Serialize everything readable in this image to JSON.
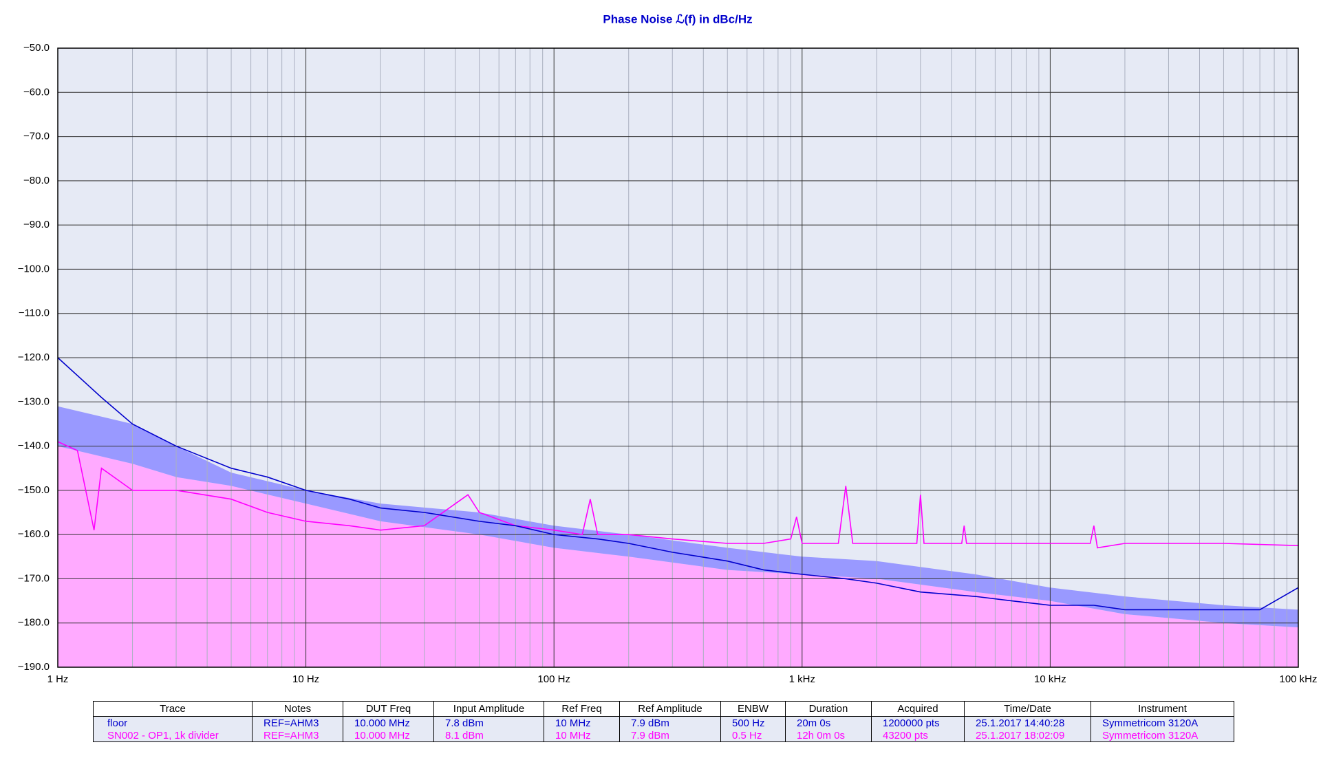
{
  "chart_data": {
    "type": "line",
    "title": "Phase Noise ℒ(f) in dBc/Hz",
    "title_color": "#0000cc",
    "xscale": "log",
    "grid": true,
    "xlim": [
      1,
      100000
    ],
    "ylim": [
      -190,
      -50
    ],
    "xticks": [
      {
        "value": 1,
        "label": "1 Hz"
      },
      {
        "value": 10,
        "label": "10 Hz"
      },
      {
        "value": 100,
        "label": "100 Hz"
      },
      {
        "value": 1000,
        "label": "1 kHz"
      },
      {
        "value": 10000,
        "label": "10 kHz"
      },
      {
        "value": 100000,
        "label": "100 kHz"
      }
    ],
    "xminorticks": [
      2,
      3,
      4,
      5,
      6,
      7,
      8,
      9,
      20,
      30,
      40,
      50,
      60,
      70,
      80,
      90,
      200,
      300,
      400,
      500,
      600,
      700,
      800,
      900,
      2000,
      3000,
      4000,
      5000,
      6000,
      7000,
      8000,
      9000,
      20000,
      30000,
      40000,
      50000,
      60000,
      70000,
      80000,
      90000
    ],
    "yticks": [
      {
        "value": -50,
        "label": "−50.0"
      },
      {
        "value": -60,
        "label": "−60.0"
      },
      {
        "value": -70,
        "label": "−70.0"
      },
      {
        "value": -80,
        "label": "−80.0"
      },
      {
        "value": -90,
        "label": "−90.0"
      },
      {
        "value": -100,
        "label": "−100.0"
      },
      {
        "value": -110,
        "label": "−110.0"
      },
      {
        "value": -120,
        "label": "−120.0"
      },
      {
        "value": -130,
        "label": "−130.0"
      },
      {
        "value": -140,
        "label": "−140.0"
      },
      {
        "value": -150,
        "label": "−150.0"
      },
      {
        "value": -160,
        "label": "−160.0"
      },
      {
        "value": -170,
        "label": "−170.0"
      },
      {
        "value": -180,
        "label": "−180.0"
      },
      {
        "value": -190,
        "label": "−190.0"
      }
    ],
    "bands": [
      {
        "color": "#ffaaff",
        "x": [
          1,
          2,
          3,
          5,
          10,
          20,
          50,
          100,
          200,
          500,
          1000,
          2000,
          5000,
          10000,
          20000,
          50000,
          100000
        ],
        "upper": [
          -140,
          -144,
          -147,
          -149,
          -153,
          -157,
          -160,
          -163,
          -165,
          -168,
          -169,
          -170,
          -173,
          -175,
          -178,
          -180,
          -181
        ]
      },
      {
        "color": "#9999ff",
        "x": [
          1,
          2,
          3,
          5,
          10,
          20,
          50,
          100,
          200,
          500,
          1000,
          2000,
          5000,
          10000,
          20000,
          50000,
          100000
        ],
        "upper": [
          -131,
          -135,
          -140,
          -146,
          -150,
          -153,
          -155,
          -158,
          -160,
          -163,
          -165,
          -166,
          -169,
          -172,
          -174,
          -176,
          -177
        ],
        "lower": [
          -140,
          -144,
          -147,
          -149,
          -153,
          -157,
          -160,
          -163,
          -165,
          -168,
          -169,
          -170,
          -173,
          -175,
          -178,
          -180,
          -181
        ]
      }
    ],
    "series": [
      {
        "name": "SN002 - OP1, 1k divider",
        "color": "#ff00ff",
        "x": [
          1,
          1.2,
          1.4,
          1.5,
          2,
          3,
          5,
          7,
          10,
          15,
          20,
          30,
          45,
          50,
          70,
          100,
          130,
          140,
          150,
          200,
          300,
          500,
          700,
          900,
          950,
          1000,
          1400,
          1500,
          1600,
          2900,
          3000,
          3100,
          4400,
          4500,
          4600,
          10000,
          14500,
          15000,
          15500,
          20000,
          50000,
          100000
        ],
        "values": [
          -139,
          -141,
          -159,
          -145,
          -150,
          -150,
          -152,
          -155,
          -157,
          -158,
          -159,
          -158,
          -151,
          -155,
          -158,
          -159,
          -160,
          -152,
          -160,
          -160,
          -161,
          -162,
          -162,
          -161,
          -156,
          -162,
          -162,
          -149,
          -162,
          -162,
          -151,
          -162,
          -162,
          -158,
          -162,
          -162,
          -162,
          -158,
          -163,
          -162,
          -162,
          -162.5
        ]
      },
      {
        "name": "floor",
        "color": "#0000cc",
        "x": [
          1,
          1.5,
          2,
          3,
          5,
          7,
          10,
          15,
          20,
          30,
          50,
          70,
          100,
          150,
          200,
          300,
          500,
          700,
          1000,
          1500,
          2000,
          3000,
          5000,
          7000,
          10000,
          15000,
          20000,
          30000,
          50000,
          70000,
          100000
        ],
        "values": [
          -120,
          -129,
          -135,
          -140,
          -145,
          -147,
          -150,
          -152,
          -154,
          -155,
          -157,
          -158,
          -160,
          -161,
          -162,
          -164,
          -166,
          -168,
          -169,
          -170,
          -171,
          -173,
          -174,
          -175,
          -176,
          -176,
          -177,
          -177,
          -177,
          -177,
          -172
        ]
      }
    ]
  },
  "table": {
    "header": [
      "Trace",
      "Notes",
      "DUT Freq",
      "Input Amplitude",
      "Ref Freq",
      "Ref Amplitude",
      "ENBW",
      "Duration",
      "Acquired",
      "Time/Date",
      "Instrument"
    ],
    "rows": [
      [
        "floor",
        "REF=AHM3",
        "10.000 MHz",
        "7.8 dBm",
        "10 MHz",
        "7.9 dBm",
        "500 Hz",
        "20m 0s",
        "1200000 pts",
        "25.1.2017 14:40:28",
        "Symmetricom 3120A"
      ],
      [
        "SN002 - OP1, 1k divider",
        "REF=AHM3",
        "10.000 MHz",
        "8.1 dBm",
        "10 MHz",
        "7.9 dBm",
        "0.5 Hz",
        "12h 0m 0s",
        "43200 pts",
        "25.1.2017 18:02:09",
        "Symmetricom 3120A"
      ]
    ]
  }
}
